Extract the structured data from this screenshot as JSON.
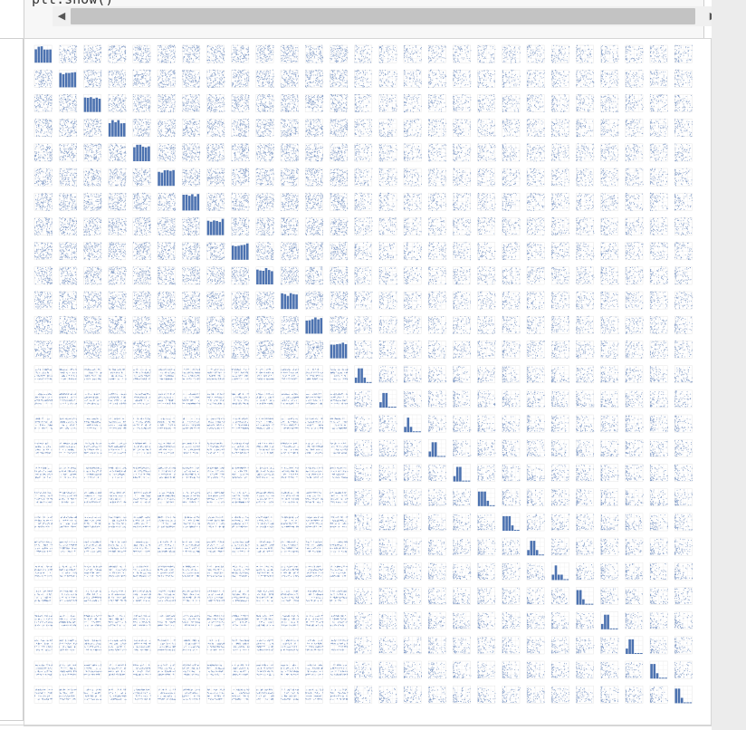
{
  "code_cell": {
    "code_text": "plt.show()"
  },
  "scrollbar": {
    "left_arrow": "◀",
    "right_arrow": "▶"
  },
  "chart_data": {
    "type": "scatter",
    "grid": true,
    "matrix_size": 27,
    "diagonal": "histogram",
    "uniform_block_size": 13,
    "color": "#4c72b0"
  }
}
